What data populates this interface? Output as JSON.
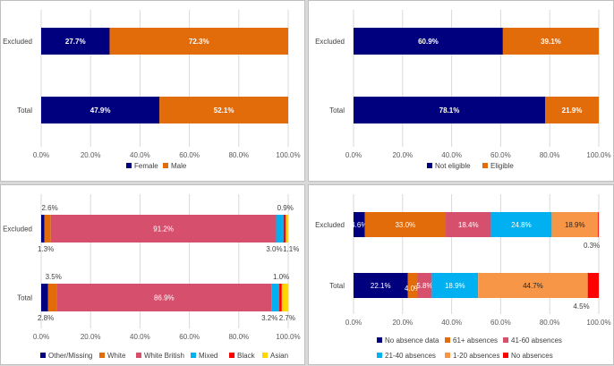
{
  "chart_data": [
    {
      "type": "bar",
      "stacked": "percent",
      "orientation": "horizontal",
      "categories": [
        "Excluded",
        "Total"
      ],
      "xlim": [
        0,
        100
      ],
      "xticks": [
        "0.0%",
        "20.0%",
        "40.0%",
        "60.0%",
        "80.0%",
        "100.0%"
      ],
      "grid": true,
      "legend_position": "bottom",
      "series": [
        {
          "name": "Female",
          "color": "#00007f",
          "values": [
            27.7,
            47.9
          ],
          "labels": [
            "27.7%",
            "47.9%"
          ]
        },
        {
          "name": "Male",
          "color": "#e26b0a",
          "values": [
            72.3,
            52.1
          ],
          "labels": [
            "72.3%",
            "52.1%"
          ]
        }
      ]
    },
    {
      "type": "bar",
      "stacked": "percent",
      "orientation": "horizontal",
      "categories": [
        "Excluded",
        "Total"
      ],
      "xlim": [
        0,
        100
      ],
      "xticks": [
        "0.0%",
        "20.0%",
        "40.0%",
        "60.0%",
        "80.0%",
        "100.0%"
      ],
      "grid": true,
      "legend_position": "bottom",
      "series": [
        {
          "name": "Not eligible",
          "color": "#00007f",
          "values": [
            60.9,
            78.1
          ],
          "labels": [
            "60.9%",
            "78.1%"
          ]
        },
        {
          "name": "Eligible",
          "color": "#e26b0a",
          "values": [
            39.1,
            21.9
          ],
          "labels": [
            "39.1%",
            "21.9%"
          ]
        }
      ]
    },
    {
      "type": "bar",
      "stacked": "percent",
      "orientation": "horizontal",
      "categories": [
        "Excluded",
        "Total"
      ],
      "xlim": [
        0,
        100
      ],
      "xticks": [
        "0.0%",
        "20.0%",
        "40.0%",
        "60.0%",
        "80.0%",
        "100.0%"
      ],
      "grid": true,
      "legend_position": "bottom",
      "series": [
        {
          "name": "Other/Missing",
          "color": "#00007f",
          "values": [
            1.3,
            2.8
          ],
          "labels": [
            "1.3%",
            "2.8%"
          ]
        },
        {
          "name": "White",
          "color": "#e26b0a",
          "values": [
            2.6,
            3.5
          ],
          "labels": [
            "2.6%",
            "3.5%"
          ]
        },
        {
          "name": "White British",
          "color": "#d6506e",
          "values": [
            91.2,
            86.9
          ],
          "labels": [
            "91.2%",
            "86.9%"
          ]
        },
        {
          "name": "Mixed",
          "color": "#00b0f0",
          "values": [
            3.0,
            3.2
          ],
          "labels": [
            "3.0%",
            "3.2%"
          ]
        },
        {
          "name": "Black",
          "color": "#ff0000",
          "values": [
            0.9,
            1.0
          ],
          "labels": [
            "0.9%",
            "1.0%"
          ]
        },
        {
          "name": "Asian",
          "color": "#ffd700",
          "values": [
            1.1,
            2.7
          ],
          "labels": [
            "1.1%",
            "2.7%"
          ]
        }
      ]
    },
    {
      "type": "bar",
      "stacked": "percent",
      "orientation": "horizontal",
      "categories": [
        "Excluded",
        "Total"
      ],
      "xlim": [
        0,
        100
      ],
      "xticks": [
        "0.0%",
        "20.0%",
        "40.0%",
        "60.0%",
        "80.0%",
        "100.0%"
      ],
      "grid": true,
      "legend_position": "bottom",
      "series": [
        {
          "name": "No absence data",
          "color": "#00007f",
          "values": [
            4.6,
            22.1
          ],
          "labels": [
            "4.6%",
            "22.1%"
          ]
        },
        {
          "name": "61+ absences",
          "color": "#e26b0a",
          "values": [
            33.0,
            4.0
          ],
          "labels": [
            "33.0%",
            "4.0%"
          ]
        },
        {
          "name": "41-60 absences",
          "color": "#d6506e",
          "values": [
            18.4,
            5.8
          ],
          "labels": [
            "18.4%",
            "5.8%"
          ]
        },
        {
          "name": "21-40 absences",
          "color": "#00b0f0",
          "values": [
            24.8,
            18.9
          ],
          "labels": [
            "24.8%",
            "18.9%"
          ]
        },
        {
          "name": "1-20 absences",
          "color": "#f79646",
          "values": [
            18.9,
            44.7
          ],
          "labels": [
            "18.9%",
            "44.7%"
          ]
        },
        {
          "name": "No absences",
          "color": "#ff0000",
          "values": [
            0.3,
            4.5
          ],
          "labels": [
            "0.3%",
            "4.5%"
          ]
        }
      ]
    }
  ]
}
